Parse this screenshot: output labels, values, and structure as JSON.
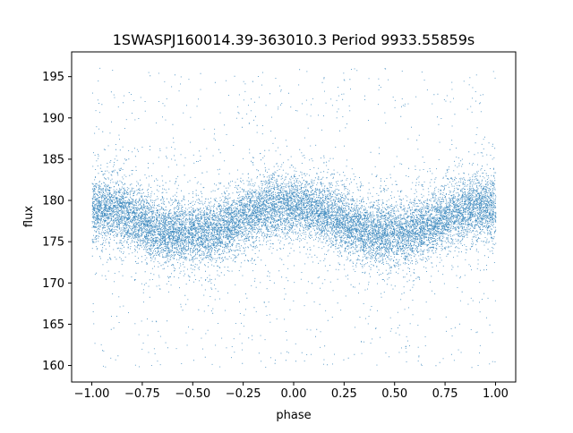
{
  "chart_data": {
    "type": "scatter",
    "title": "1SWASPJ160014.39-363010.3 Period 9933.55859s",
    "xlabel": "phase",
    "ylabel": "flux",
    "xlim": [
      -1.1,
      1.1
    ],
    "ylim": [
      158.0,
      198.0
    ],
    "xticks": [
      -1.0,
      -0.75,
      -0.5,
      -0.25,
      0.0,
      0.25,
      0.5,
      0.75,
      1.0
    ],
    "xtick_labels": [
      "−1.00",
      "−0.75",
      "−0.50",
      "−0.25",
      "0.00",
      "0.25",
      "0.50",
      "0.75",
      "1.00"
    ],
    "yticks": [
      160,
      165,
      170,
      175,
      180,
      185,
      190,
      195
    ],
    "ytick_labels": [
      "160",
      "165",
      "170",
      "175",
      "180",
      "185",
      "190",
      "195"
    ],
    "grid": false,
    "legend": false,
    "point_color": "#1f77b4",
    "series": [
      {
        "values_description_points": {
          "phase": [
            -1.0,
            -0.9,
            -0.8,
            -0.7,
            -0.6,
            -0.5,
            -0.4,
            -0.3,
            -0.2,
            -0.1,
            0.0,
            0.1,
            0.2,
            0.3,
            0.4,
            0.5,
            0.6,
            0.7,
            0.8,
            0.9,
            1.0
          ],
          "median_flux": [
            179.0,
            179.0,
            177.9,
            176.8,
            176.1,
            176.0,
            176.3,
            177.4,
            178.6,
            179.3,
            179.4,
            179.0,
            177.9,
            176.8,
            176.1,
            176.0,
            176.3,
            177.4,
            178.6,
            179.3,
            179.0
          ]
        }
      }
    ],
    "flux_range": [
      159.8,
      196.2
    ]
  }
}
